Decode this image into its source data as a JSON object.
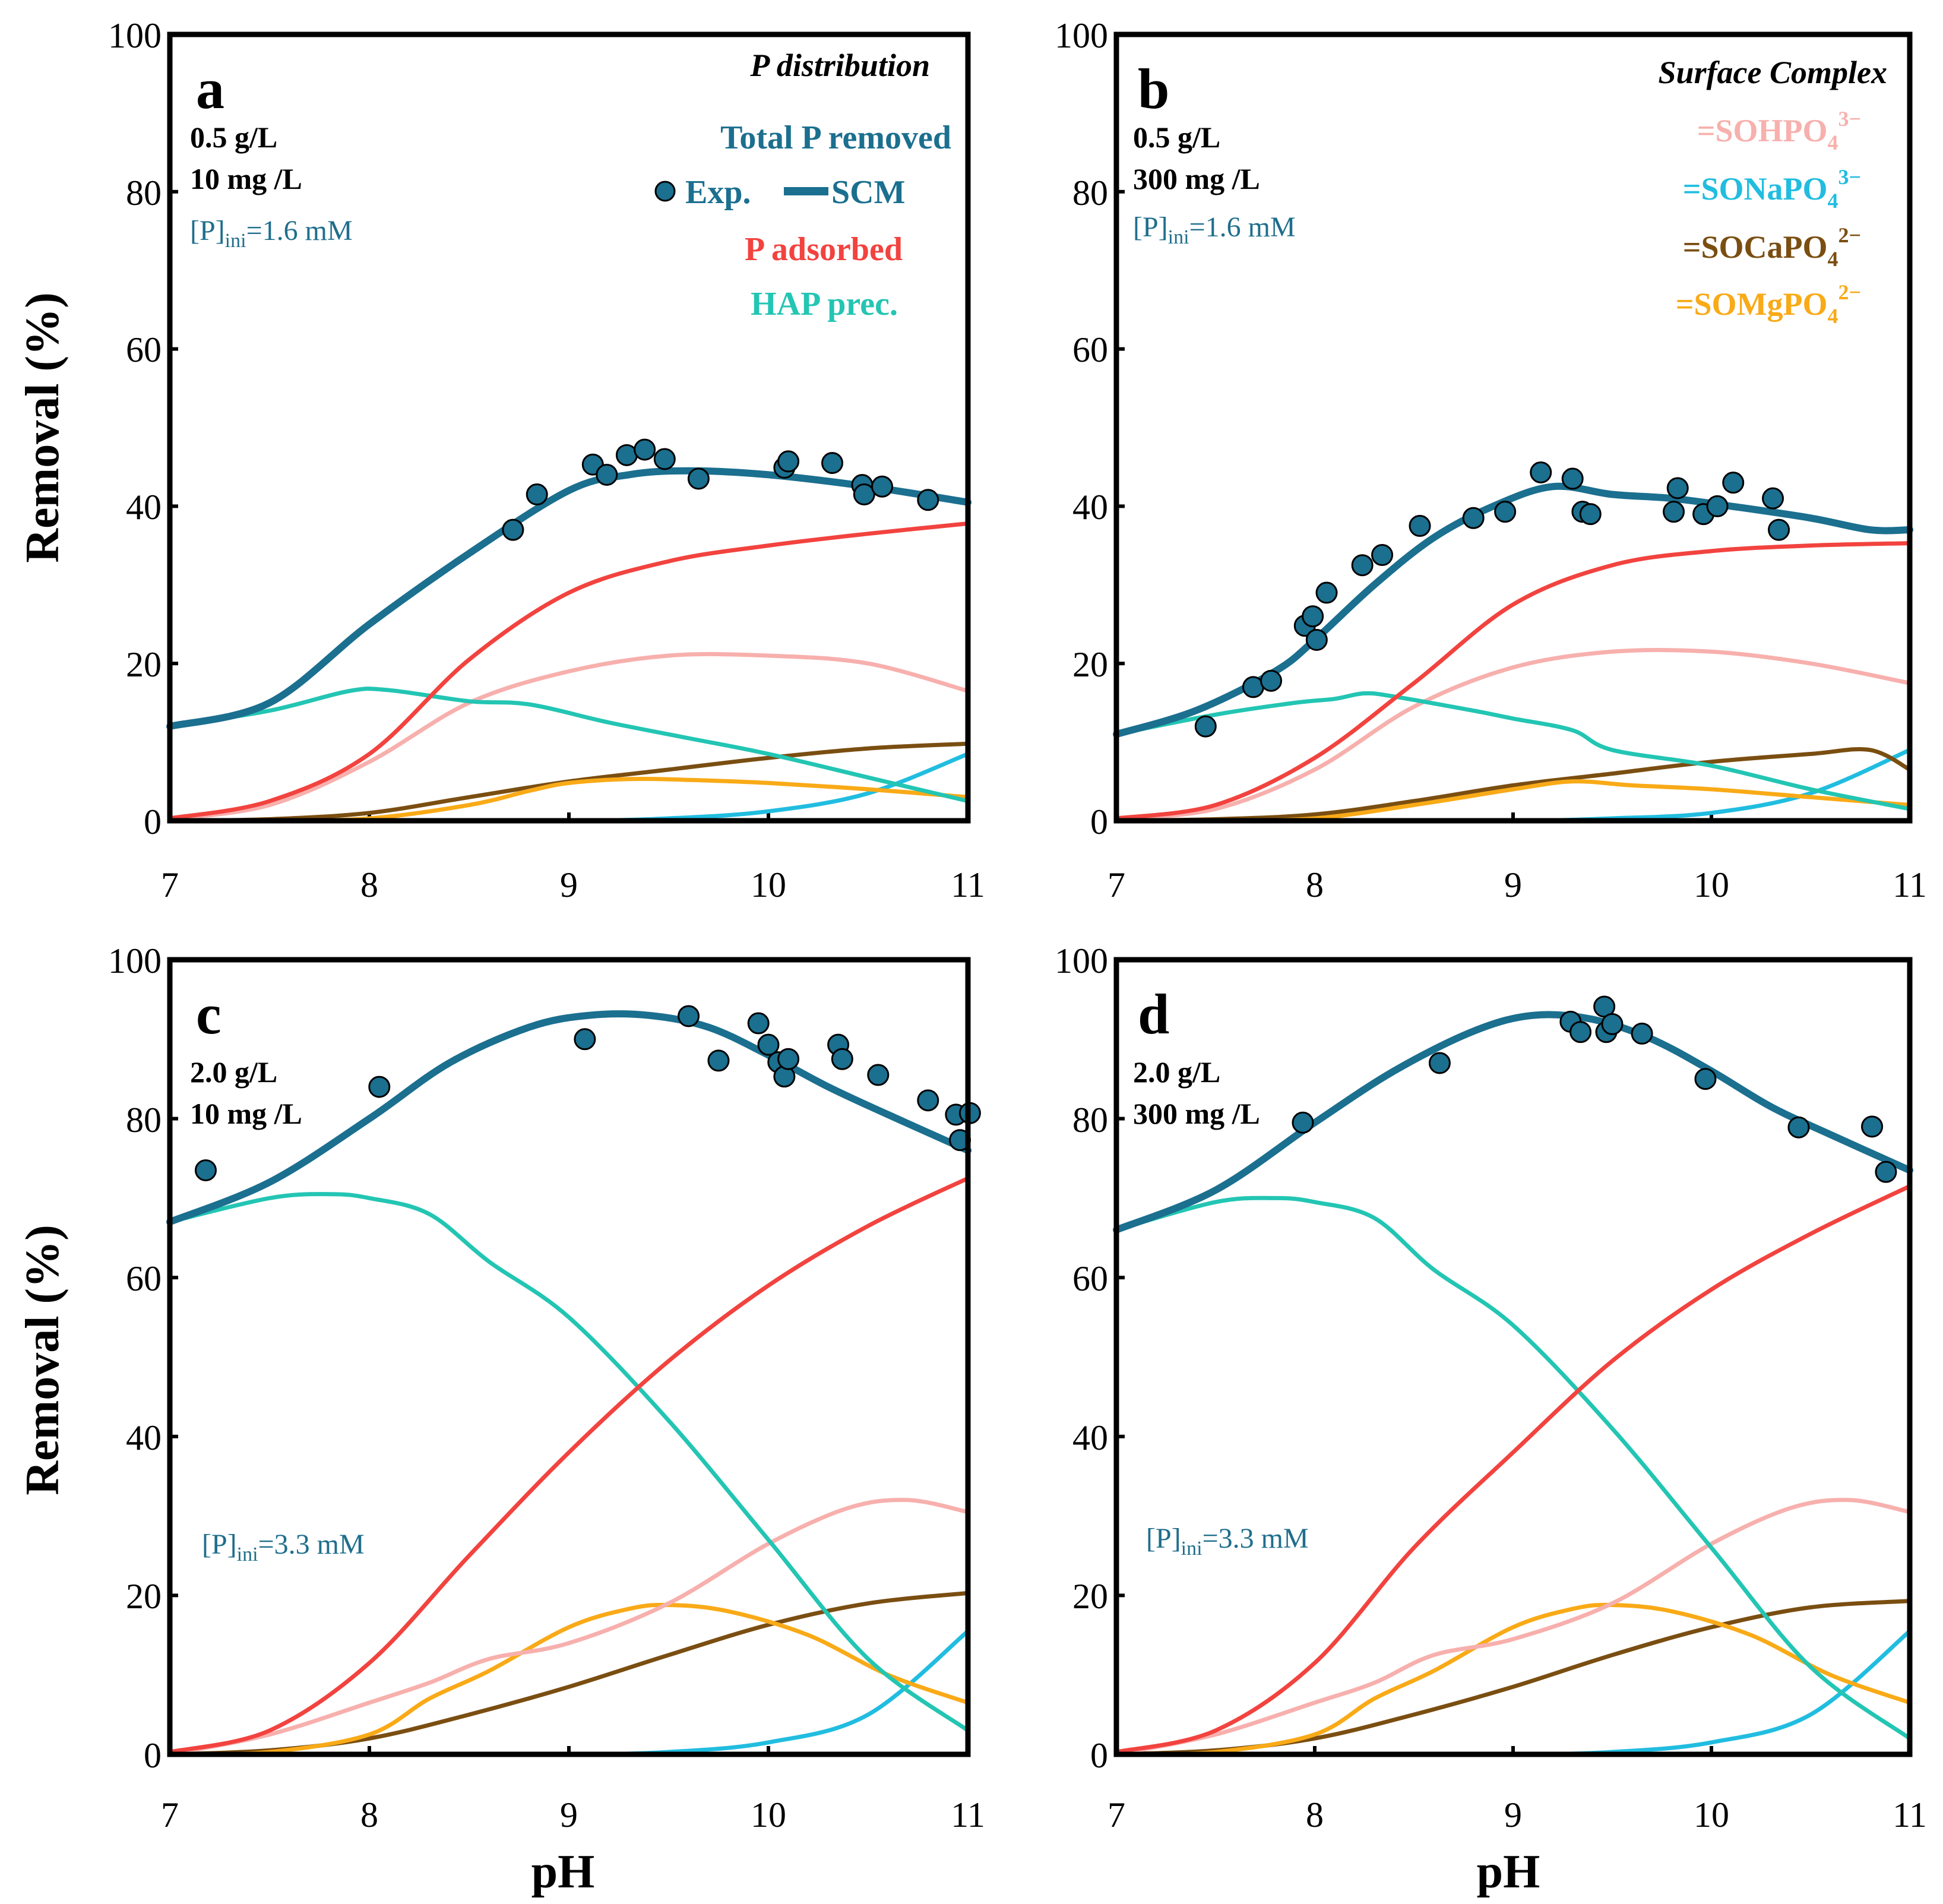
{
  "colors": {
    "total": "#1b6f8f",
    "adsorbed": "#f2433f",
    "hap": "#23c5b3",
    "sohpo4": "#f7b0ad",
    "sonapo4": "#21bde0",
    "socapo4": "#7a4e11",
    "somgpo4": "#f9aa17"
  },
  "axes": {
    "xlabel": "pH",
    "ylabel": "Removal (%)",
    "x_ticks": [
      "7",
      "8",
      "9",
      "10",
      "11"
    ],
    "y_ticks": [
      "0",
      "20",
      "40",
      "60",
      "80",
      "100"
    ],
    "xlim": [
      7,
      11
    ],
    "ylim": [
      0,
      100
    ]
  },
  "legend_a": {
    "title": "P distribution",
    "total": "Total P removed",
    "exp": "Exp.",
    "scm": "SCM",
    "adsorbed": "P adsorbed",
    "hap": "HAP prec."
  },
  "legend_b": {
    "title": "Surface Complex",
    "items": [
      {
        "pre": "=SOHPO",
        "sub": "4",
        "sup": "3−"
      },
      {
        "pre": "=SONaPO",
        "sub": "4",
        "sup": "3−"
      },
      {
        "pre": "=SOCaPO",
        "sub": "4",
        "sup": "2−"
      },
      {
        "pre": "=SOMgPO",
        "sub": "4",
        "sup": "2−"
      }
    ]
  },
  "chart_data": [
    {
      "type": "line",
      "panel": "a",
      "dose": "0.5 g/L",
      "conc": "10 mg /L",
      "pini": {
        "pre": "[P]",
        "sub": "ini",
        "post": "=1.6 mM"
      },
      "xlim": [
        7,
        11
      ],
      "ylim": [
        0,
        100
      ],
      "series": [
        {
          "name": "Total P removed (SCM)",
          "key": "total",
          "x": [
            7.0,
            7.5,
            8.0,
            8.5,
            9.0,
            9.3,
            9.6,
            10.0,
            10.5,
            11.0
          ],
          "y": [
            12,
            15,
            25,
            34,
            42,
            44,
            44.5,
            44,
            42.5,
            40.5
          ]
        },
        {
          "name": "HAP prec.",
          "key": "hap",
          "x": [
            7.0,
            7.5,
            7.9,
            8.1,
            8.5,
            8.8,
            9.2,
            9.6,
            10.0,
            10.5,
            11.0
          ],
          "y": [
            12,
            14,
            16.5,
            16.6,
            15.2,
            14.8,
            12.5,
            10.5,
            8.5,
            5.5,
            2.5
          ]
        },
        {
          "name": "P adsorbed",
          "key": "adsorbed",
          "x": [
            7.0,
            7.5,
            8.0,
            8.5,
            9.0,
            9.5,
            10.0,
            10.5,
            11.0
          ],
          "y": [
            0.3,
            2.5,
            8.5,
            20.5,
            29,
            33,
            35,
            36.5,
            37.8
          ]
        },
        {
          "name": "=SOHPO4 3-",
          "key": "sohpo4",
          "x": [
            7.0,
            7.5,
            8.0,
            8.5,
            9.0,
            9.5,
            10.0,
            10.5,
            11.0
          ],
          "y": [
            0.2,
            2,
            7.5,
            15,
            19,
            21,
            21,
            20,
            16.5
          ]
        },
        {
          "name": "=SOCaPO4 2-",
          "key": "socapo4",
          "x": [
            7.0,
            7.5,
            8.0,
            8.5,
            9.0,
            9.5,
            10.0,
            10.5,
            11.0
          ],
          "y": [
            0,
            0.2,
            1,
            3,
            5,
            6.5,
            8,
            9.2,
            9.8
          ]
        },
        {
          "name": "=SOMgPO4 2-",
          "key": "somgpo4",
          "x": [
            7.0,
            7.5,
            8.0,
            8.5,
            8.8,
            9.0,
            9.3,
            9.6,
            10.0,
            10.5,
            11.0
          ],
          "y": [
            0,
            0,
            0.3,
            2,
            3.8,
            4.8,
            5.3,
            5.2,
            4.8,
            4,
            3
          ]
        },
        {
          "name": "=SONaPO4 3-",
          "key": "sonapo4",
          "x": [
            7.0,
            8.0,
            9.0,
            9.5,
            10.0,
            10.5,
            11.0
          ],
          "y": [
            0,
            0,
            0,
            0.3,
            1.2,
            3.5,
            8.5
          ]
        }
      ],
      "points": {
        "x": [
          8.72,
          8.84,
          9.12,
          9.19,
          9.29,
          9.38,
          9.48,
          9.65,
          10.08,
          10.1,
          10.32,
          10.47,
          10.48,
          10.57,
          10.8
        ],
        "y": [
          37,
          41.5,
          45.3,
          44,
          46.5,
          47.2,
          46,
          43.5,
          44.9,
          45.7,
          45.5,
          42.7,
          41.5,
          42.5,
          40.8
        ]
      }
    },
    {
      "type": "line",
      "panel": "b",
      "dose": "0.5 g/L",
      "conc": "300 mg /L",
      "pini": {
        "pre": "[P]",
        "sub": "ini",
        "post": "=1.6 mM"
      },
      "xlim": [
        7,
        11
      ],
      "ylim": [
        0,
        100
      ],
      "series": [
        {
          "name": "Total P removed (SCM)",
          "key": "total",
          "x": [
            7.0,
            7.4,
            7.8,
            8.0,
            8.3,
            8.6,
            8.9,
            9.2,
            9.5,
            9.8,
            10.1,
            10.5,
            10.8,
            11.0
          ],
          "y": [
            11,
            14,
            19,
            23,
            30,
            36,
            40,
            42.5,
            41.5,
            41,
            40,
            38.5,
            37,
            37
          ]
        },
        {
          "name": "HAP prec.",
          "key": "hap",
          "x": [
            7.0,
            7.5,
            7.9,
            8.1,
            8.25,
            8.4,
            8.8,
            9.0,
            9.3,
            9.5,
            10.0,
            10.5,
            11.0
          ],
          "y": [
            11,
            13.5,
            15,
            15.5,
            16.2,
            15.8,
            14,
            13,
            11.5,
            9,
            7,
            4,
            1.5
          ]
        },
        {
          "name": "P adsorbed",
          "key": "adsorbed",
          "x": [
            7.0,
            7.5,
            8.0,
            8.5,
            9.0,
            9.5,
            10.0,
            10.5,
            11.0
          ],
          "y": [
            0.3,
            2,
            8,
            17.5,
            27.5,
            32.5,
            34.3,
            35,
            35.3
          ]
        },
        {
          "name": "=SOHPO4 3-",
          "key": "sohpo4",
          "x": [
            7.0,
            7.5,
            8.0,
            8.5,
            9.0,
            9.5,
            10.0,
            10.5,
            11.0
          ],
          "y": [
            0.2,
            1.5,
            6.5,
            14.5,
            19.5,
            21.5,
            21.5,
            20,
            17.5
          ]
        },
        {
          "name": "=SOCaPO4 2-",
          "key": "socapo4",
          "x": [
            7.0,
            7.5,
            8.0,
            8.5,
            9.0,
            9.5,
            10.0,
            10.5,
            10.8,
            11.0
          ],
          "y": [
            0,
            0.2,
            0.8,
            2.5,
            4.5,
            6,
            7.5,
            8.5,
            9,
            6.5
          ]
        },
        {
          "name": "=SOMgPO4 2-",
          "key": "somgpo4",
          "x": [
            7.0,
            7.5,
            8.0,
            8.5,
            9.0,
            9.3,
            9.6,
            10.0,
            10.5,
            11.0
          ],
          "y": [
            0,
            0,
            0.3,
            2,
            4,
            5,
            4.5,
            4,
            3,
            2
          ]
        },
        {
          "name": "=SONaPO4 3-",
          "key": "sonapo4",
          "x": [
            7.0,
            8.0,
            9.0,
            9.5,
            10.0,
            10.5,
            11.0
          ],
          "y": [
            0,
            0,
            0,
            0.3,
            1,
            3.5,
            9
          ]
        }
      ],
      "points": {
        "x": [
          7.45,
          7.69,
          7.78,
          7.95,
          7.99,
          8.01,
          8.06,
          8.24,
          8.34,
          8.53,
          8.8,
          8.96,
          9.14,
          9.3,
          9.35,
          9.39,
          9.81,
          9.83,
          9.96,
          10.03,
          10.11,
          10.31,
          10.34
        ],
        "y": [
          12,
          17,
          17.8,
          24.8,
          26,
          23,
          29,
          32.5,
          33.8,
          37.5,
          38.5,
          39.3,
          44.3,
          43.5,
          39.3,
          39,
          39.3,
          42.3,
          39,
          40,
          43,
          41,
          37
        ]
      }
    },
    {
      "type": "line",
      "panel": "c",
      "dose": "2.0 g/L",
      "conc": "10 mg /L",
      "pini": {
        "pre": "[P]",
        "sub": "ini",
        "post": "=3.3 mM"
      },
      "xlim": [
        7,
        11
      ],
      "ylim": [
        0,
        100
      ],
      "series": [
        {
          "name": "Total P removed (SCM)",
          "key": "total",
          "x": [
            7.0,
            7.5,
            8.0,
            8.4,
            8.8,
            9.1,
            9.4,
            9.7,
            10.0,
            10.3,
            10.6,
            11.0
          ],
          "y": [
            67,
            72,
            80,
            87,
            91.5,
            93,
            93,
            91.5,
            88,
            84,
            80.5,
            76
          ]
        },
        {
          "name": "HAP prec.",
          "key": "hap",
          "x": [
            7.0,
            7.5,
            7.8,
            8.0,
            8.3,
            8.6,
            9.0,
            9.5,
            10.0,
            10.5,
            11.0
          ],
          "y": [
            67,
            70,
            70.5,
            70,
            68,
            62,
            55,
            42,
            27,
            12,
            3
          ]
        },
        {
          "name": "P adsorbed",
          "key": "adsorbed",
          "x": [
            7.0,
            7.5,
            8.0,
            8.5,
            9.0,
            9.5,
            10.0,
            10.5,
            11.0
          ],
          "y": [
            0.3,
            3,
            11.5,
            25,
            38,
            49.5,
            59,
            66.5,
            72.5
          ]
        },
        {
          "name": "=SOHPO4 3-",
          "key": "sohpo4",
          "x": [
            7.0,
            7.5,
            8.0,
            8.3,
            8.6,
            9.0,
            9.5,
            10.0,
            10.4,
            10.7,
            11.0
          ],
          "y": [
            0,
            2.5,
            6.5,
            9,
            12,
            14,
            19,
            26.5,
            31,
            32,
            30.5
          ]
        },
        {
          "name": "=SOCaPO4 2-",
          "key": "socapo4",
          "x": [
            7.0,
            7.5,
            8.0,
            8.5,
            9.0,
            9.5,
            10.0,
            10.5,
            11.0
          ],
          "y": [
            0,
            0.5,
            2,
            5,
            8.5,
            12.5,
            16.3,
            19,
            20.3
          ]
        },
        {
          "name": "=SOMgPO4 2-",
          "key": "somgpo4",
          "x": [
            7.0,
            7.5,
            8.0,
            8.3,
            8.6,
            9.0,
            9.3,
            9.5,
            9.8,
            10.2,
            10.6,
            11.0
          ],
          "y": [
            0,
            0.3,
            2.5,
            7,
            10.5,
            16,
            18.3,
            18.8,
            18,
            15,
            10,
            6.5
          ]
        },
        {
          "name": "=SONaPO4 3-",
          "key": "sonapo4",
          "x": [
            7.0,
            8.0,
            9.0,
            9.5,
            10.0,
            10.5,
            11.0
          ],
          "y": [
            0,
            0,
            0,
            0.3,
            1.5,
            5,
            15.5
          ]
        }
      ],
      "points": {
        "x": [
          7.18,
          8.05,
          9.08,
          9.6,
          9.75,
          9.95,
          10.0,
          10.05,
          10.08,
          10.1,
          10.35,
          10.37,
          10.55,
          10.8,
          10.94,
          10.96,
          11.01
        ],
        "y": [
          73.5,
          84,
          90,
          92.9,
          87.3,
          92,
          89.3,
          87.1,
          85.3,
          87.5,
          89.3,
          87.5,
          85.5,
          82.3,
          80.5,
          77.3,
          80.7
        ]
      }
    },
    {
      "type": "line",
      "panel": "d",
      "dose": "2.0 g/L",
      "conc": "300 mg /L",
      "pini": {
        "pre": "[P]",
        "sub": "ini",
        "post": "=3.3 mM"
      },
      "xlim": [
        7,
        11
      ],
      "ylim": [
        0,
        100
      ],
      "series": [
        {
          "name": "Total P removed (SCM)",
          "key": "total",
          "x": [
            7.0,
            7.5,
            8.0,
            8.4,
            8.8,
            9.1,
            9.4,
            9.7,
            10.0,
            10.3,
            10.6,
            11.0
          ],
          "y": [
            66,
            71,
            79.5,
            86,
            91,
            93,
            92.5,
            90,
            86,
            81.5,
            78,
            73.5
          ]
        },
        {
          "name": "HAP prec.",
          "key": "hap",
          "x": [
            7.0,
            7.5,
            7.8,
            8.0,
            8.3,
            8.6,
            9.0,
            9.5,
            10.0,
            10.5,
            11.0
          ],
          "y": [
            66,
            69.5,
            70,
            69.5,
            67.5,
            61,
            54,
            41,
            26,
            11,
            2
          ]
        },
        {
          "name": "P adsorbed",
          "key": "adsorbed",
          "x": [
            7.0,
            7.5,
            8.0,
            8.5,
            9.0,
            9.5,
            10.0,
            10.5,
            11.0
          ],
          "y": [
            0.3,
            3,
            11.5,
            26,
            38,
            49.5,
            58.5,
            65.5,
            71.5
          ]
        },
        {
          "name": "=SOHPO4 3-",
          "key": "sohpo4",
          "x": [
            7.0,
            7.5,
            8.0,
            8.3,
            8.6,
            9.0,
            9.5,
            10.0,
            10.4,
            10.7,
            11.0
          ],
          "y": [
            0,
            2.5,
            6.5,
            9,
            12.5,
            14.5,
            19,
            26.5,
            31,
            32,
            30.5
          ]
        },
        {
          "name": "=SOCaPO4 2-",
          "key": "socapo4",
          "x": [
            7.0,
            7.5,
            8.0,
            8.5,
            9.0,
            9.5,
            10.0,
            10.5,
            11.0
          ],
          "y": [
            0,
            0.5,
            2,
            5,
            8.5,
            12.5,
            16,
            18.5,
            19.3
          ]
        },
        {
          "name": "=SOMgPO4 2-",
          "key": "somgpo4",
          "x": [
            7.0,
            7.5,
            8.0,
            8.3,
            8.6,
            9.0,
            9.3,
            9.5,
            9.8,
            10.2,
            10.6,
            11.0
          ],
          "y": [
            0,
            0.3,
            2.5,
            7,
            10.5,
            16,
            18.3,
            18.8,
            18,
            15,
            10,
            6.5
          ]
        },
        {
          "name": "=SONaPO4 3-",
          "key": "sonapo4",
          "x": [
            7.0,
            8.0,
            9.0,
            9.5,
            10.0,
            10.5,
            11.0
          ],
          "y": [
            0,
            0,
            0,
            0.3,
            1.5,
            5,
            15.5
          ]
        }
      ],
      "points": {
        "x": [
          7.94,
          8.63,
          9.29,
          9.34,
          9.46,
          9.47,
          9.5,
          9.65,
          9.97,
          10.44,
          10.81,
          10.88
        ],
        "y": [
          79.5,
          87,
          92.2,
          90.9,
          94.1,
          90.9,
          91.9,
          90.7,
          85,
          78.9,
          79,
          73.3
        ]
      }
    }
  ]
}
